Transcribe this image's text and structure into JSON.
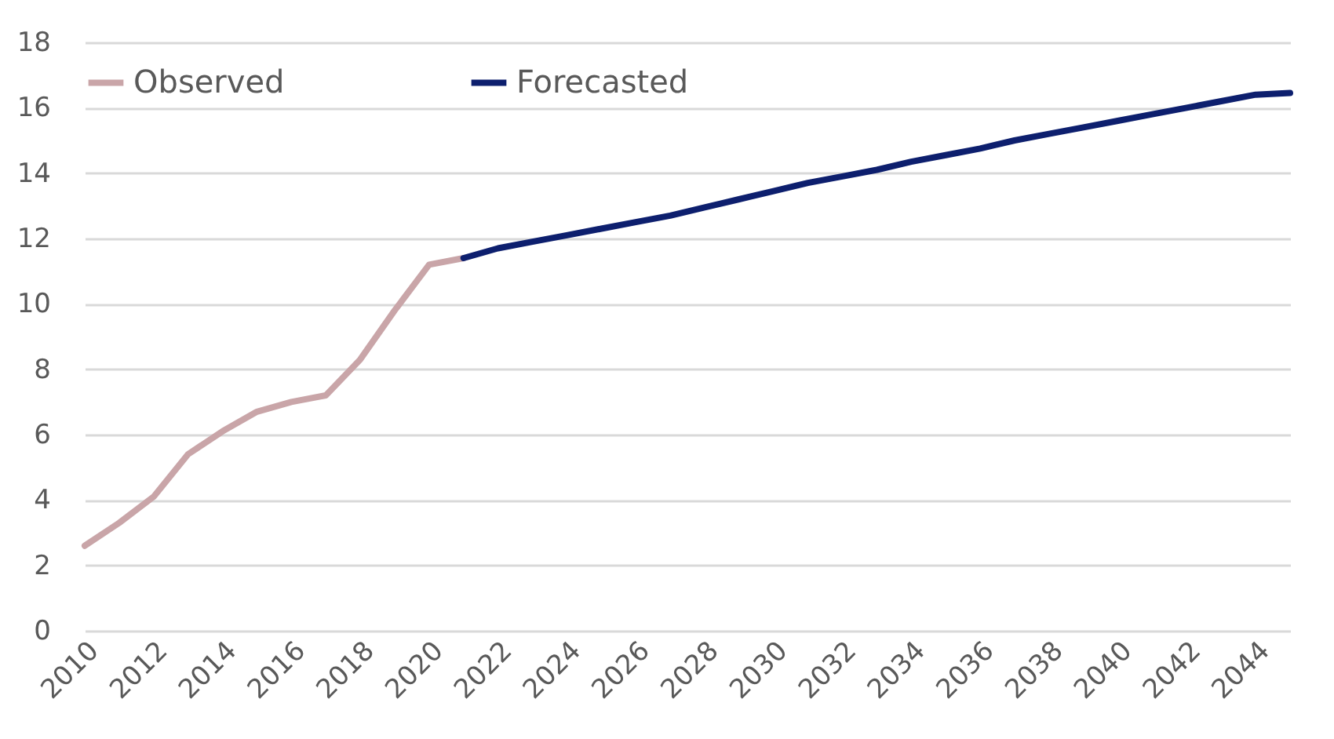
{
  "chart_data": {
    "type": "line",
    "categories": [
      "2010",
      null,
      "2012",
      null,
      "2014",
      null,
      "2016",
      null,
      "2018",
      null,
      "2020",
      null,
      "2022",
      null,
      "2024",
      null,
      "2026",
      null,
      "2028",
      null,
      "2030",
      null,
      "2032",
      null,
      "2034",
      null,
      "2036",
      null,
      "2038",
      null,
      "2040",
      null,
      "2042",
      null,
      "2044",
      null
    ],
    "series": [
      {
        "name": "Observed",
        "color": "#c9a5a8",
        "values": [
          2.6,
          3.3,
          4.1,
          5.4,
          6.1,
          6.7,
          7.0,
          7.2,
          8.3,
          9.8,
          11.2,
          11.4,
          null,
          null,
          null,
          null,
          null,
          null,
          null,
          null,
          null,
          null,
          null,
          null,
          null,
          null,
          null,
          null,
          null,
          null,
          null,
          null,
          null,
          null,
          null,
          null
        ]
      },
      {
        "name": "Forecasted",
        "color": "#0d1f6e",
        "values": [
          null,
          null,
          null,
          null,
          null,
          null,
          null,
          null,
          null,
          null,
          null,
          11.4,
          11.7,
          11.9,
          12.1,
          12.3,
          12.5,
          12.7,
          12.95,
          13.2,
          13.45,
          13.7,
          13.9,
          14.1,
          14.35,
          14.55,
          14.75,
          15.0,
          15.2,
          15.4,
          15.6,
          15.8,
          16.0,
          16.2,
          16.4,
          16.45
        ]
      }
    ],
    "ylim": [
      0,
      18
    ],
    "yticks": [
      0,
      2,
      4,
      6,
      8,
      10,
      12,
      14,
      16,
      18
    ],
    "grid": "y",
    "legend": "top",
    "line_style": "solid",
    "marker": "none"
  }
}
